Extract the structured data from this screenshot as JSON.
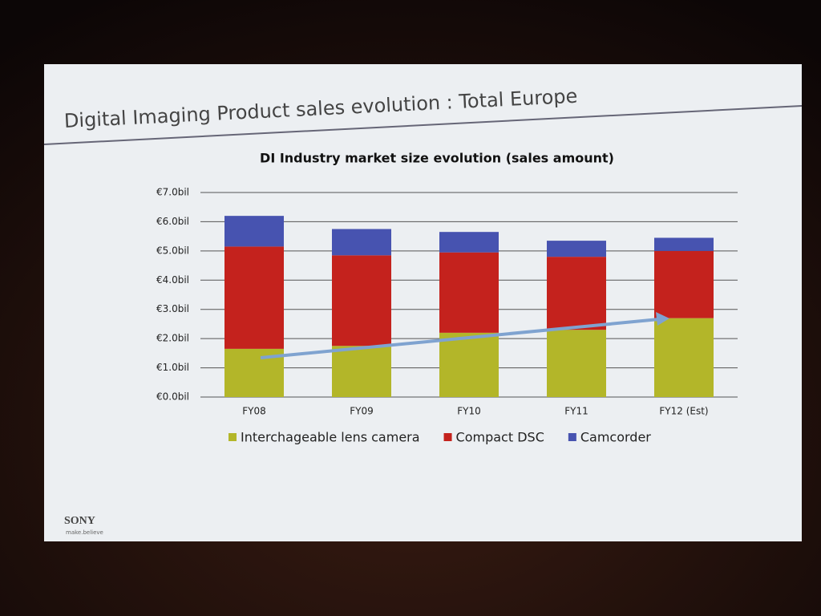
{
  "slide": {
    "title": "Digital Imaging Product sales evolution : Total Europe",
    "logo": "SONY",
    "tagline": "make.believe"
  },
  "chart_data": {
    "type": "stacked-bar",
    "title": "DI Industry market size evolution (sales amount)",
    "categories": [
      "FY08",
      "FY09",
      "FY10",
      "FY11",
      "FY12 (Est)"
    ],
    "series": [
      {
        "name": "Interchageable lens camera",
        "color": "#b3b629",
        "values": [
          1.65,
          1.75,
          2.2,
          2.3,
          2.7
        ]
      },
      {
        "name": "Compact DSC",
        "color": "#c4221d",
        "values": [
          3.5,
          3.1,
          2.75,
          2.5,
          2.3
        ]
      },
      {
        "name": "Camcorder",
        "color": "#4753b0",
        "values": [
          1.05,
          0.9,
          0.7,
          0.55,
          0.45
        ]
      }
    ],
    "ylim": [
      0,
      7
    ],
    "yticks": [
      {
        "value": 0,
        "label": "€0.0bil"
      },
      {
        "value": 1,
        "label": "€1.0bil"
      },
      {
        "value": 2,
        "label": "€2.0bil"
      },
      {
        "value": 3,
        "label": "€3.0bil"
      },
      {
        "value": 4,
        "label": "€4.0bil"
      },
      {
        "value": 5,
        "label": "€5.0bil"
      },
      {
        "value": 6,
        "label": "€6.0bil"
      },
      {
        "value": 7,
        "label": "€7.0bil"
      }
    ],
    "grid": true,
    "legend": "bottom"
  }
}
